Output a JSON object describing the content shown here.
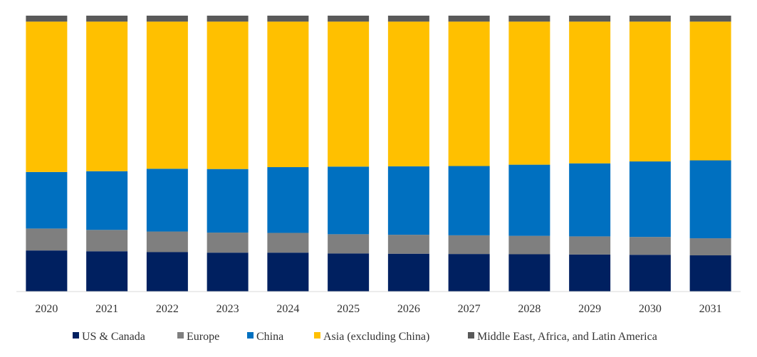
{
  "chart_data": {
    "type": "bar",
    "stacked": "percent",
    "title": "",
    "xlabel": "",
    "ylabel": "",
    "ylim": [
      0,
      100
    ],
    "grid": false,
    "legend_position": "bottom",
    "categories": [
      "2020",
      "2021",
      "2022",
      "2023",
      "2024",
      "2025",
      "2026",
      "2027",
      "2028",
      "2029",
      "2030",
      "2031"
    ],
    "series": [
      {
        "name": "US & Canada",
        "color": "#002060",
        "values": [
          15.2,
          14.9,
          14.6,
          14.4,
          14.4,
          14.1,
          14.0,
          13.9,
          13.8,
          13.7,
          13.6,
          13.4
        ]
      },
      {
        "name": "Europe",
        "color": "#7F7F7F",
        "values": [
          8.1,
          7.9,
          7.6,
          7.4,
          7.3,
          7.1,
          7.0,
          6.9,
          6.8,
          6.7,
          6.6,
          6.3
        ]
      },
      {
        "name": "China",
        "color": "#0070C0",
        "values": [
          20.9,
          21.7,
          23.2,
          23.5,
          24.3,
          25.0,
          25.3,
          25.6,
          26.3,
          27.0,
          27.9,
          28.8
        ]
      },
      {
        "name": "Asia (excluding China)",
        "color": "#FFC000",
        "values": [
          55.6,
          55.3,
          54.4,
          54.5,
          53.8,
          53.6,
          53.5,
          53.4,
          52.9,
          52.4,
          51.7,
          51.3
        ]
      },
      {
        "name": "Middle East, Africa, and Latin America",
        "color": "#595959",
        "values": [
          2.2,
          2.2,
          2.2,
          2.2,
          2.2,
          2.2,
          2.2,
          2.2,
          2.2,
          2.2,
          2.2,
          2.2
        ]
      }
    ]
  }
}
